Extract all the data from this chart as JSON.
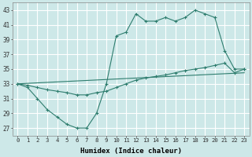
{
  "xlabel": "Humidex (Indice chaleur)",
  "bg_color": "#cde8e8",
  "grid_color": "#ffffff",
  "line_color": "#2e7d6e",
  "xlim": [
    -0.5,
    23.5
  ],
  "ylim": [
    26,
    44
  ],
  "xticks": [
    0,
    1,
    2,
    3,
    4,
    5,
    6,
    7,
    8,
    9,
    10,
    11,
    12,
    13,
    14,
    15,
    16,
    17,
    18,
    19,
    20,
    21,
    22,
    23
  ],
  "yticks": [
    27,
    29,
    31,
    33,
    35,
    37,
    39,
    41,
    43
  ],
  "series": [
    {
      "x": [
        0,
        1,
        2,
        3,
        4,
        5,
        6,
        7,
        8,
        9,
        10,
        11,
        12,
        13,
        14,
        15,
        16,
        17,
        18,
        19,
        20,
        21,
        22,
        23
      ],
      "y": [
        33,
        32.5,
        31,
        29.5,
        28.5,
        27.5,
        27,
        27,
        29,
        33,
        39.5,
        40,
        42.5,
        41.5,
        41.5,
        42,
        41.5,
        42,
        43,
        42.5,
        42,
        37.5,
        35,
        35
      ],
      "marker": true
    },
    {
      "x": [
        0,
        1,
        2,
        3,
        4,
        5,
        6,
        7,
        8,
        9,
        10,
        11,
        12,
        13,
        14,
        15,
        16,
        17,
        18,
        19,
        20,
        21,
        22,
        23
      ],
      "y": [
        33,
        32.8,
        32.5,
        32.2,
        32.0,
        31.8,
        31.5,
        31.5,
        31.8,
        32.0,
        32.5,
        33.0,
        33.5,
        33.8,
        34.0,
        34.2,
        34.5,
        34.8,
        35.0,
        35.2,
        35.5,
        35.8,
        34.5,
        35
      ],
      "marker": true
    },
    {
      "x": [
        0,
        23
      ],
      "y": [
        33,
        34.5
      ],
      "marker": false
    }
  ]
}
